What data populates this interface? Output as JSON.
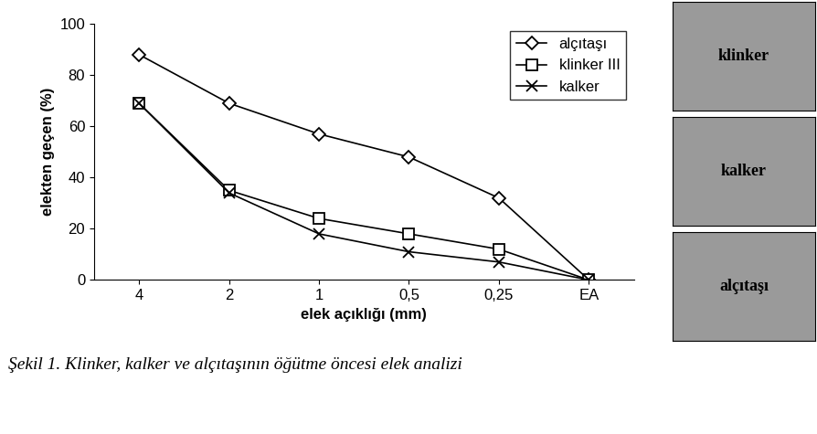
{
  "chart_data": {
    "type": "line",
    "x_label": "elek açıklığı (mm)",
    "y_label": "elekten geçen (%)",
    "categories": [
      "4",
      "2",
      "1",
      "0,5",
      "0,25",
      "EA"
    ],
    "series": [
      {
        "name": "alçıtaşı",
        "color": "#000000",
        "marker": "diamond",
        "line_style": "solid",
        "values": [
          88,
          69,
          57,
          48,
          32,
          0
        ]
      },
      {
        "name": "klinker III",
        "color": "#000000",
        "marker": "square",
        "line_style": "solid",
        "values": [
          69,
          35,
          24,
          18,
          12,
          0
        ]
      },
      {
        "name": "kalker",
        "color": "#000000",
        "marker": "x",
        "line_style": "solid",
        "values": [
          69,
          34,
          18,
          11,
          7,
          0
        ]
      }
    ],
    "ylim": [
      0,
      100
    ],
    "yticks": [
      0,
      20,
      40,
      60,
      80,
      100
    ],
    "grid": false,
    "legend": "upper right"
  },
  "caption": "Şekil 1. Klinker, kalker ve alçıtaşının öğütme öncesi elek analizi",
  "photo_labels": [
    "klinker",
    "kalker",
    "alçıtaşı"
  ]
}
